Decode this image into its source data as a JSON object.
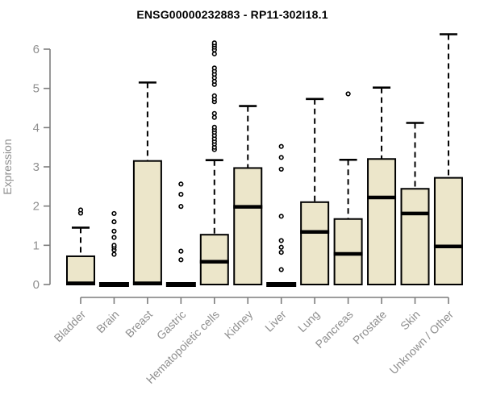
{
  "title": "ENSG00000232883 - RP11-302I18.1",
  "chart_data": {
    "type": "box",
    "title": "ENSG00000232883 - RP11-302I18.1",
    "xlabel": "",
    "ylabel": "Expression",
    "ylim": [
      0,
      6
    ],
    "yticks": [
      0,
      1,
      2,
      3,
      4,
      5,
      6
    ],
    "grid": false,
    "legend": "none",
    "colors": {
      "box_fill": "#ece6ca",
      "box_stroke": "#000000",
      "axis": "#7d7d7d",
      "tick_text": "#8f8f8f",
      "title_text": "#000000"
    },
    "categories": [
      "Bladder",
      "Brain",
      "Breast",
      "Gastric",
      "Hematopoietic cells",
      "Kidney",
      "Liver",
      "Lung",
      "Pancreas",
      "Prostate",
      "Skin",
      "Unknown / Other"
    ],
    "series": [
      {
        "name": "Bladder",
        "q1": 0,
        "median": 0.03,
        "q3": 0.72,
        "whisker_low": 0,
        "whisker_high": 1.45,
        "outliers": [
          1.82,
          1.9
        ]
      },
      {
        "name": "Brain",
        "q1": 0,
        "median": 0,
        "q3": 0,
        "whisker_low": 0,
        "whisker_high": 0,
        "outliers": [
          0.77,
          0.88,
          0.95,
          1.0,
          1.2,
          1.36,
          1.6,
          1.81
        ]
      },
      {
        "name": "Breast",
        "q1": 0,
        "median": 0.03,
        "q3": 3.15,
        "whisker_low": 0,
        "whisker_high": 5.15,
        "outliers": []
      },
      {
        "name": "Gastric",
        "q1": 0,
        "median": 0,
        "q3": 0,
        "whisker_low": 0,
        "whisker_high": 0,
        "outliers": [
          0.63,
          0.85,
          1.99,
          2.3,
          2.56
        ]
      },
      {
        "name": "Hematopoietic cells",
        "q1": 0,
        "median": 0.58,
        "q3": 1.27,
        "whisker_low": 0,
        "whisker_high": 3.17,
        "outliers": [
          3.44,
          3.5,
          3.58,
          3.65,
          3.72,
          3.8,
          3.88,
          3.95,
          4.01,
          4.26,
          4.36,
          4.66,
          4.73,
          4.81,
          5.1,
          5.18,
          5.27,
          5.36,
          5.44,
          5.52,
          5.88,
          5.98,
          6.05,
          6.11,
          6.16
        ]
      },
      {
        "name": "Kidney",
        "q1": 0,
        "median": 1.98,
        "q3": 2.97,
        "whisker_low": 0,
        "whisker_high": 4.55,
        "outliers": []
      },
      {
        "name": "Liver",
        "q1": 0,
        "median": 0,
        "q3": 0,
        "whisker_low": 0,
        "whisker_high": 0,
        "outliers": [
          0.38,
          0.82,
          0.95,
          1.12,
          1.74,
          2.94,
          3.24,
          3.52
        ]
      },
      {
        "name": "Lung",
        "q1": 0,
        "median": 1.34,
        "q3": 2.1,
        "whisker_low": 0,
        "whisker_high": 4.73,
        "outliers": []
      },
      {
        "name": "Pancreas",
        "q1": 0,
        "median": 0.78,
        "q3": 1.67,
        "whisker_low": 0,
        "whisker_high": 3.18,
        "outliers": [
          4.86
        ]
      },
      {
        "name": "Prostate",
        "q1": 0,
        "median": 2.22,
        "q3": 3.2,
        "whisker_low": 0,
        "whisker_high": 5.02,
        "outliers": []
      },
      {
        "name": "Skin",
        "q1": 0,
        "median": 1.81,
        "q3": 2.44,
        "whisker_low": 0,
        "whisker_high": 4.12,
        "outliers": []
      },
      {
        "name": "Unknown / Other",
        "q1": 0,
        "median": 0.97,
        "q3": 2.72,
        "whisker_low": 0,
        "whisker_high": 6.38,
        "outliers": []
      }
    ]
  }
}
